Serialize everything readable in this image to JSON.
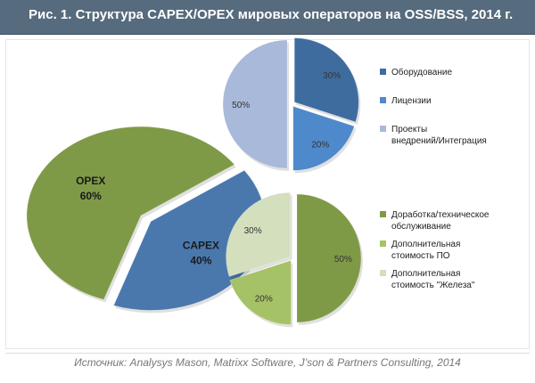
{
  "header": {
    "title": "Рис. 1. Структура CAPEX/OPEX мировых операторов на OSS/BSS, 2014 г."
  },
  "footer": {
    "source": "Источник: Analysys Mason, Matrixx Software, J’son & Partners Consulting, 2014"
  },
  "chart_data": [
    {
      "type": "pie",
      "title": "",
      "legend": "none",
      "slices": [
        {
          "name": "CAPEX",
          "value": 40,
          "label": "40%",
          "color": "#4a78ad"
        },
        {
          "name": "OPEX",
          "value": 60,
          "label": "60%",
          "color": "#7f9a47"
        }
      ]
    },
    {
      "type": "pie",
      "title": "",
      "legend": "right",
      "slices": [
        {
          "name": "Оборудование",
          "value": 30,
          "label": "30%",
          "color": "#3f6c9f"
        },
        {
          "name": "Лицензии",
          "value": 20,
          "label": "20%",
          "color": "#4e89cb"
        },
        {
          "name": "Проекты внедрений/Интеграция",
          "value": 50,
          "label": "50%",
          "color": "#a8b9d9"
        }
      ]
    },
    {
      "type": "pie",
      "title": "",
      "legend": "right",
      "slices": [
        {
          "name": "Доработка/техническое обслуживание",
          "value": 50,
          "label": "50%",
          "color": "#7f9a47"
        },
        {
          "name": "Дополнительная стоимость ПО",
          "value": 20,
          "label": "20%",
          "color": "#a6c266"
        },
        {
          "name": "Дополнительная стоимость \"Железа\"",
          "value": 30,
          "label": "30%",
          "color": "#d3dfbd"
        }
      ]
    }
  ]
}
